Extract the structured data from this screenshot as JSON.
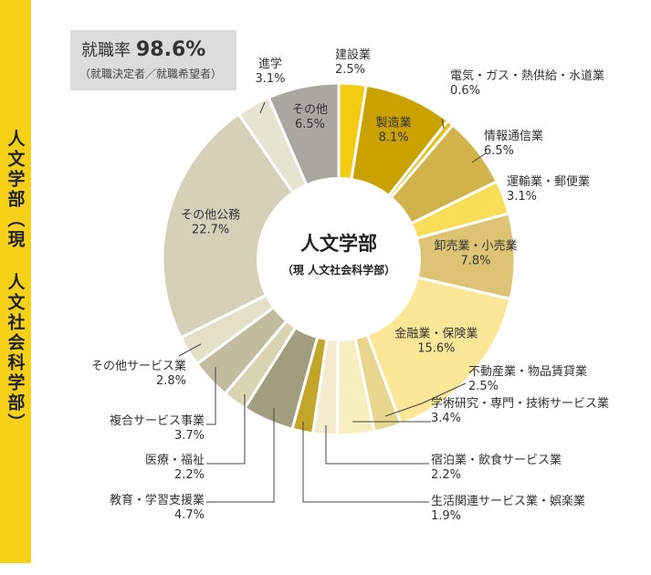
{
  "side_title": "人文学部（現 人文社会科学部）",
  "employment": {
    "label": "就職率",
    "value": "98.6%",
    "note": "（就職決定者／就職希望者）"
  },
  "center": {
    "title": "人文学部",
    "subtitle": "（現 人文社会科学部）"
  },
  "chart_data": {
    "type": "pie",
    "style": "donut",
    "start": "12 o'clock, clockwise",
    "slices": [
      {
        "name": "建設業",
        "value": 2.5,
        "value_label": "2.5%",
        "color": "#f4cd12"
      },
      {
        "name": "製造業",
        "value": 8.1,
        "value_label": "8.1%",
        "color": "#c9a200"
      },
      {
        "name": "電気・ガス・熱供給・水道業",
        "value": 0.6,
        "value_label": "0.6%",
        "color": "#e2c21c"
      },
      {
        "name": "情報通信業",
        "value": 6.5,
        "value_label": "6.5%",
        "color": "#d0b34a"
      },
      {
        "name": "運輸業・郵便業",
        "value": 3.1,
        "value_label": "3.1%",
        "color": "#f7dd58"
      },
      {
        "name": "卸売業・小売業",
        "value": 7.8,
        "value_label": "7.8%",
        "color": "#dcc474"
      },
      {
        "name": "金融業・保険業",
        "value": 15.6,
        "value_label": "15.6%",
        "color": "#fbe796"
      },
      {
        "name": "不動産業・物品賃貸業",
        "value": 2.5,
        "value_label": "2.5%",
        "color": "#e9d68e"
      },
      {
        "name": "学術研究・専門・技術サービス業",
        "value": 3.4,
        "value_label": "3.4%",
        "color": "#f9eec0"
      },
      {
        "name": "宿泊業・飲食サービス業",
        "value": 2.2,
        "value_label": "2.2%",
        "color": "#f5ecd0"
      },
      {
        "name": "生活関連サービス業・娯楽業",
        "value": 1.9,
        "value_label": "1.9%",
        "color": "#c2a52b"
      },
      {
        "name": "教育・学習支援業",
        "value": 4.7,
        "value_label": "4.7%",
        "color": "#a19e80"
      },
      {
        "name": "医療・福祉",
        "value": 2.2,
        "value_label": "2.2%",
        "color": "#d8d3b0"
      },
      {
        "name": "複合サービス事業",
        "value": 3.7,
        "value_label": "3.7%",
        "color": "#c1bca0"
      },
      {
        "name": "その他サービス業",
        "value": 2.8,
        "value_label": "2.8%",
        "color": "#e4dfc8"
      },
      {
        "name": "その他公務",
        "value": 22.7,
        "value_label": "22.7%",
        "color": "#d5d0b9"
      },
      {
        "name": "進学",
        "value": 3.1,
        "value_label": "3.1%",
        "color": "#e6e3d1"
      },
      {
        "name": "その他",
        "value": 6.5,
        "value_label": "6.5%",
        "color": "#a9a7a2"
      }
    ]
  }
}
